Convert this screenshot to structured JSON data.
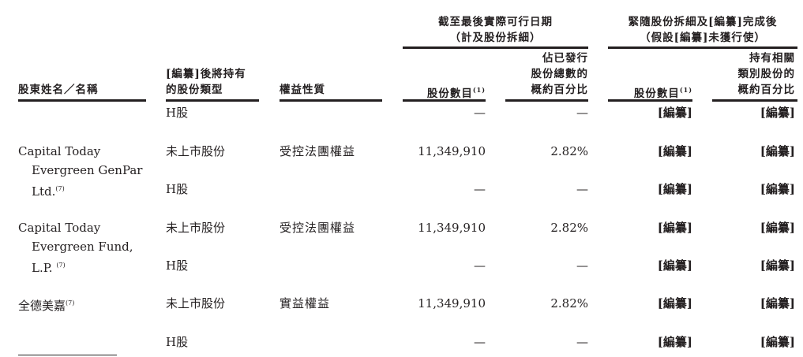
{
  "header": {
    "group1_line1": "截至最後實際可行日期",
    "group1_line2": "（計及股份拆細）",
    "group2_line1": "緊隨股份拆細及[編纂]完成後",
    "group2_line2": "（假設[編纂]未獲行使）",
    "col_name": "股東姓名／名稱",
    "col_type_line1": "[編纂]後將持有",
    "col_type_line2": "的股份類型",
    "col_nature": "權益性質",
    "col_shares": "股份數目",
    "col_shares_note": "(1)",
    "col_pct_line1": "佔已發行",
    "col_pct_line2": "股份總數的",
    "col_pct_line3": "概約百分比",
    "col_post_shares": "股份數目",
    "col_post_shares_note": "(1)",
    "col_post_pct_line1": "持有相關",
    "col_post_pct_line2": "類別股份的",
    "col_post_pct_line3": "概約百分比"
  },
  "rows": [
    {
      "type": "H股",
      "nature": "",
      "shares": "—",
      "pct": "—",
      "post_shares": "[編纂]",
      "post_pct": "[編纂]"
    },
    {
      "type": "未上市股份",
      "nature": "受控法團權益",
      "shares": "11,349,910",
      "pct": "2.82%",
      "post_shares": "[編纂]",
      "post_pct": "[編纂]"
    },
    {
      "type": "H股",
      "nature": "",
      "shares": "—",
      "pct": "—",
      "post_shares": "[編纂]",
      "post_pct": "[編纂]"
    },
    {
      "type": "未上市股份",
      "nature": "受控法團權益",
      "shares": "11,349,910",
      "pct": "2.82%",
      "post_shares": "[編纂]",
      "post_pct": "[編纂]"
    },
    {
      "type": "H股",
      "nature": "",
      "shares": "—",
      "pct": "—",
      "post_shares": "[編纂]",
      "post_pct": "[編纂]"
    },
    {
      "type": "未上市股份",
      "nature": "實益權益",
      "shares": "11,349,910",
      "pct": "2.82%",
      "post_shares": "[編纂]",
      "post_pct": "[編纂]"
    },
    {
      "type": "H股",
      "nature": "",
      "shares": "—",
      "pct": "—",
      "post_shares": "[編纂]",
      "post_pct": "[編纂]"
    }
  ],
  "holders": [
    {
      "line1": "Capital Today",
      "line2": "Evergreen GenPar",
      "line3": "Ltd.",
      "note": "(7)"
    },
    {
      "line1": "Capital Today",
      "line2": "Evergreen Fund,",
      "line3": "L.P.",
      "note": "(7)"
    },
    {
      "line1": "全德美嘉",
      "note": "(7)"
    }
  ]
}
